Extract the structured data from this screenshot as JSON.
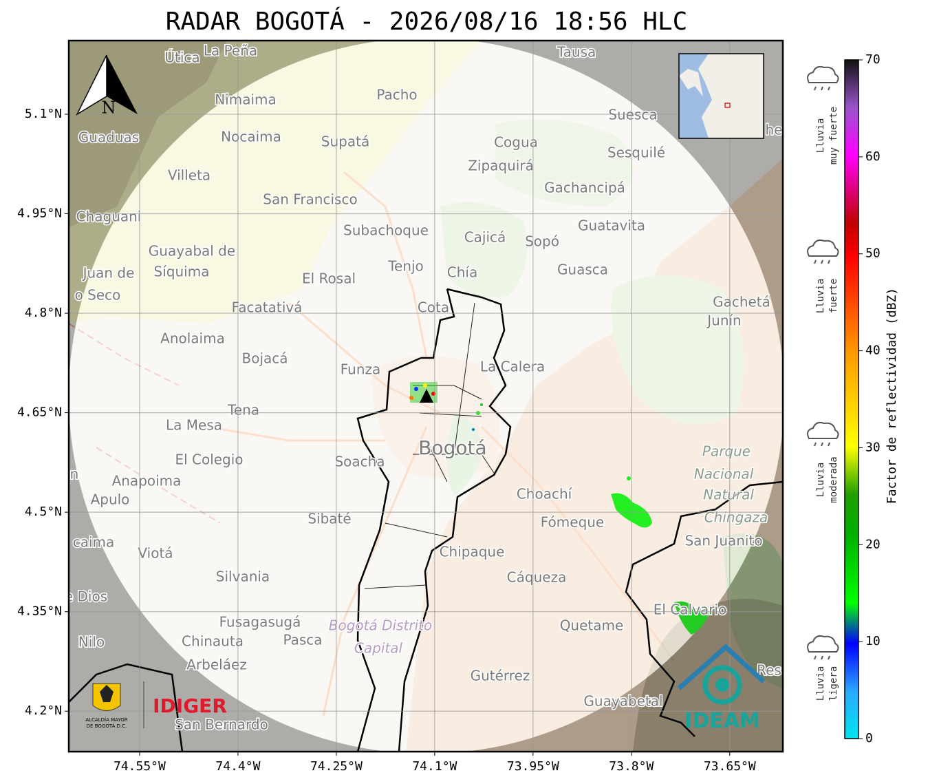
{
  "title": "RADAR BOGOTÁ - 2026/08/16 18:56 HLC",
  "map": {
    "xlim": [
      -74.658,
      -73.569
    ],
    "ylim": [
      4.139,
      5.211
    ],
    "xticks": [
      {
        "value": -74.55,
        "label": "74.55°W"
      },
      {
        "value": -74.4,
        "label": "74.4°W"
      },
      {
        "value": -74.25,
        "label": "74.25°W"
      },
      {
        "value": -74.1,
        "label": "74.1°W"
      },
      {
        "value": -73.95,
        "label": "73.95°W"
      },
      {
        "value": -73.8,
        "label": "73.8°W"
      },
      {
        "value": -73.65,
        "label": "73.65°W"
      }
    ],
    "yticks": [
      {
        "value": 5.1,
        "label": "5.1°N"
      },
      {
        "value": 4.95,
        "label": "4.95°N"
      },
      {
        "value": 4.8,
        "label": "4.8°N"
      },
      {
        "value": 4.65,
        "label": "4.65°N"
      },
      {
        "value": 4.5,
        "label": "4.5°N"
      },
      {
        "value": 4.35,
        "label": "4.35°N"
      },
      {
        "value": 4.2,
        "label": "4.2°N"
      }
    ],
    "grid": true,
    "north": "N",
    "places": [
      "Útica",
      "La Peña",
      "Tausa",
      "Pacho",
      "Nimaima",
      "Suesca",
      "Guaduas",
      "Nocaima",
      "Supatá",
      "Cogua",
      "Sesquilé",
      "Zipaquirá",
      "Villeta",
      "Gachancipá",
      "San Francisco",
      "Chaguani",
      "Guatavita",
      "Subachoque",
      "Cajicá",
      "Sopó",
      "Guayabal de",
      "Síquima",
      "Juan de",
      "Tenjo",
      "Chía",
      "Guasca",
      "El Rosal",
      "o Seco",
      "Gachetá",
      "Junín",
      "Facatativá",
      "Cota",
      "Anolaima",
      "Bojacá",
      "La Calera",
      "Funza",
      "Tena",
      "La Mesa",
      "Bogotá",
      "Parque",
      "El Colegio",
      "Soacha",
      "Nacional",
      "n",
      "Anapoima",
      "Natural",
      "Choachí",
      "Apulo",
      "Chingaza",
      "Sibaté",
      "Fómeque",
      "San Juanito",
      "caima",
      "Chipaque",
      "Viotá",
      "Silvania",
      "Cáqueza",
      "e Dios",
      "El Calvario",
      "Fusagasugá",
      "Bogotá Distrito",
      "Quetame",
      "Nilo",
      "Chinauta",
      "Pasca",
      "Capital",
      "Arbeláez",
      "Res",
      "Gutérrez",
      "Guayabetal",
      "San Bernardo",
      "he"
    ]
  },
  "colorbar": {
    "label": "Factor de reflectividad (dBZ)",
    "lim": [
      0,
      70
    ],
    "ticks": [
      0,
      10,
      20,
      30,
      40,
      50,
      60,
      70
    ],
    "categories": [
      [
        "Lluvia",
        "muy fuerte"
      ],
      [
        "Lluvia",
        "fuerte"
      ],
      [
        "Lluvia",
        "moderada"
      ],
      [
        "Lluvia",
        "ligera"
      ]
    ]
  },
  "logos": {
    "alcaldia": [
      "ALCALDÍA MAYOR",
      "DE BOGOTÁ D.C."
    ],
    "idiger": "IDIGER",
    "ideam": "IDEAM"
  }
}
